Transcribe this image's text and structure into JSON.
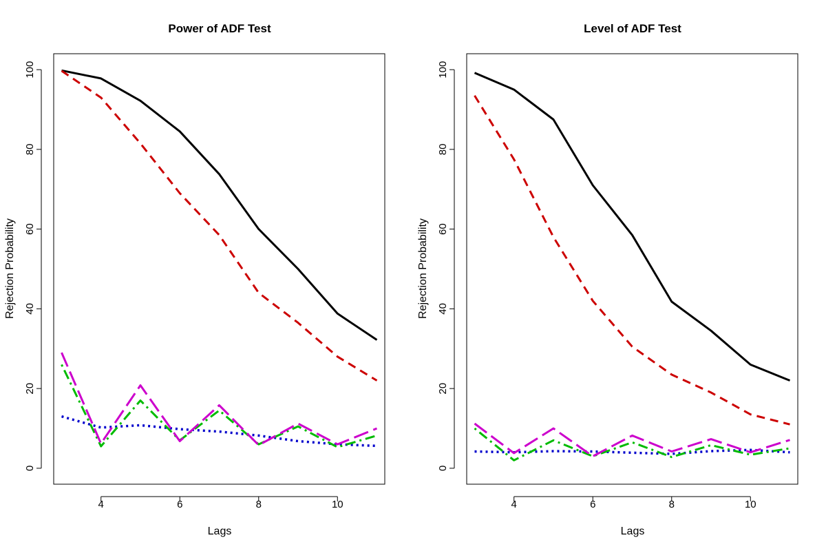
{
  "chart_data": [
    {
      "type": "line",
      "title": "Power of ADF Test",
      "xlabel": "Lags",
      "ylabel": "Rejection Probability",
      "x": [
        3,
        4,
        5,
        6,
        7,
        8,
        9,
        10,
        11
      ],
      "xlim": [
        2.8,
        11.2
      ],
      "ylim": [
        -4,
        104
      ],
      "xticks": [
        4,
        6,
        8,
        10
      ],
      "yticks": [
        0,
        20,
        40,
        60,
        80,
        100
      ],
      "grid": false,
      "series": [
        {
          "values": [
            99.8,
            97.8,
            92.2,
            84.5,
            73.8,
            60.0,
            50.0,
            38.8,
            32.2
          ],
          "color": "#000000",
          "dash": "solid"
        },
        {
          "values": [
            99.7,
            93.0,
            81.5,
            69.0,
            58.5,
            44.0,
            36.5,
            28.0,
            22.0
          ],
          "color": "#CC0000",
          "dash": "dashed"
        },
        {
          "values": [
            13.0,
            10.2,
            10.8,
            9.8,
            9.2,
            8.2,
            6.8,
            6.0,
            5.6
          ],
          "color": "#0000CC",
          "dash": "dotted"
        },
        {
          "values": [
            26.0,
            5.5,
            17.0,
            7.0,
            14.5,
            6.0,
            10.5,
            5.3,
            8.2
          ],
          "color": "#00BB00",
          "dash": "dotdash"
        },
        {
          "values": [
            29.0,
            6.2,
            20.8,
            6.8,
            15.8,
            5.8,
            11.2,
            6.0,
            10.0
          ],
          "color": "#CC00CC",
          "dash": "longdash"
        }
      ]
    },
    {
      "type": "line",
      "title": "Level of ADF Test",
      "xlabel": "Lags",
      "ylabel": "Rejection Probability",
      "x": [
        3,
        4,
        5,
        6,
        7,
        8,
        9,
        10,
        11
      ],
      "xlim": [
        2.8,
        11.2
      ],
      "ylim": [
        -4,
        104
      ],
      "xticks": [
        4,
        6,
        8,
        10
      ],
      "yticks": [
        0,
        20,
        40,
        60,
        80,
        100
      ],
      "grid": false,
      "series": [
        {
          "values": [
            99.2,
            95.0,
            87.5,
            71.0,
            58.5,
            41.8,
            34.5,
            26.0,
            22.0
          ],
          "color": "#000000",
          "dash": "solid"
        },
        {
          "values": [
            93.5,
            77.5,
            58.0,
            42.0,
            30.5,
            23.5,
            19.0,
            13.5,
            11.0
          ],
          "color": "#CC0000",
          "dash": "dashed"
        },
        {
          "values": [
            4.2,
            4.0,
            4.3,
            4.2,
            3.9,
            3.6,
            4.3,
            4.6,
            4.0
          ],
          "color": "#0000CC",
          "dash": "dotted"
        },
        {
          "values": [
            10.0,
            2.0,
            7.0,
            3.0,
            6.5,
            2.8,
            5.8,
            3.4,
            5.0
          ],
          "color": "#00BB00",
          "dash": "dotdash"
        },
        {
          "values": [
            11.2,
            3.8,
            10.0,
            3.0,
            8.2,
            4.2,
            7.3,
            4.0,
            7.1
          ],
          "color": "#CC00CC",
          "dash": "longdash"
        }
      ]
    }
  ]
}
